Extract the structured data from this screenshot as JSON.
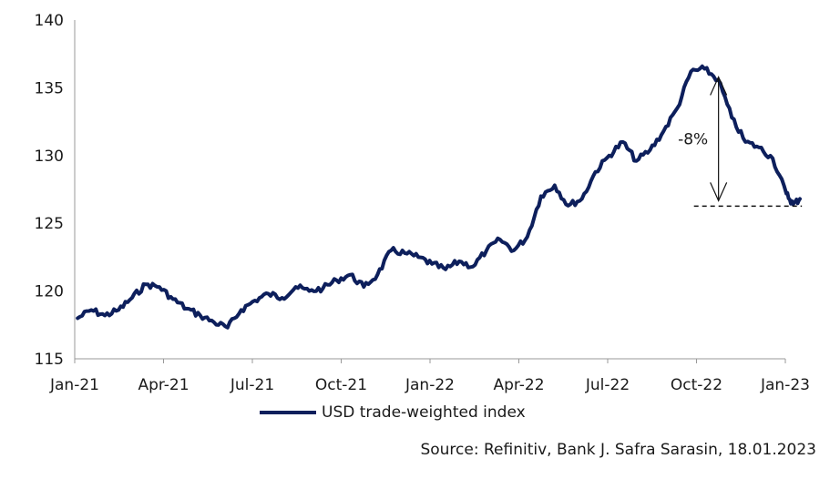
{
  "chart_data": {
    "type": "line",
    "ylim": [
      115,
      140
    ],
    "y_ticks": [
      115,
      120,
      125,
      130,
      135,
      140
    ],
    "x_ticks": [
      "Jan-21",
      "Apr-21",
      "Jul-21",
      "Oct-21",
      "Jan-22",
      "Apr-22",
      "Jul-22",
      "Oct-22",
      "Jan-23"
    ],
    "series": [
      {
        "name": "USD trade-weighted index",
        "color": "#0d1f5c",
        "points": [
          [
            "2021-01-04",
            118.0
          ],
          [
            "2021-01-18",
            118.6
          ],
          [
            "2021-02-01",
            118.2
          ],
          [
            "2021-02-15",
            118.6
          ],
          [
            "2021-03-01",
            119.5
          ],
          [
            "2021-03-15",
            120.5
          ],
          [
            "2021-03-29",
            120.3
          ],
          [
            "2021-04-12",
            119.4
          ],
          [
            "2021-04-26",
            118.7
          ],
          [
            "2021-05-10",
            118.2
          ],
          [
            "2021-05-24",
            117.7
          ],
          [
            "2021-06-07",
            117.3
          ],
          [
            "2021-06-21",
            118.6
          ],
          [
            "2021-07-05",
            119.3
          ],
          [
            "2021-07-19",
            119.8
          ],
          [
            "2021-08-02",
            119.5
          ],
          [
            "2021-08-16",
            120.3
          ],
          [
            "2021-08-30",
            120.0
          ],
          [
            "2021-09-13",
            120.2
          ],
          [
            "2021-09-27",
            120.8
          ],
          [
            "2021-10-11",
            121.2
          ],
          [
            "2021-10-25",
            120.3
          ],
          [
            "2021-11-08",
            121.2
          ],
          [
            "2021-11-22",
            123.0
          ],
          [
            "2021-12-06",
            122.8
          ],
          [
            "2021-12-20",
            122.5
          ],
          [
            "2022-01-03",
            122.0
          ],
          [
            "2022-01-17",
            121.6
          ],
          [
            "2022-01-31",
            122.2
          ],
          [
            "2022-02-14",
            121.8
          ],
          [
            "2022-02-28",
            123.0
          ],
          [
            "2022-03-14",
            123.8
          ],
          [
            "2022-03-28",
            123.0
          ],
          [
            "2022-04-11",
            124.0
          ],
          [
            "2022-04-25",
            127.0
          ],
          [
            "2022-05-09",
            127.8
          ],
          [
            "2022-05-23",
            126.3
          ],
          [
            "2022-06-06",
            126.8
          ],
          [
            "2022-06-20",
            128.8
          ],
          [
            "2022-07-04",
            130.0
          ],
          [
            "2022-07-18",
            131.0
          ],
          [
            "2022-08-01",
            129.6
          ],
          [
            "2022-08-15",
            130.4
          ],
          [
            "2022-08-29",
            131.8
          ],
          [
            "2022-09-12",
            133.5
          ],
          [
            "2022-09-26",
            136.2
          ],
          [
            "2022-10-10",
            136.4
          ],
          [
            "2022-10-24",
            135.6
          ],
          [
            "2022-11-07",
            132.8
          ],
          [
            "2022-11-21",
            131.0
          ],
          [
            "2022-12-05",
            130.6
          ],
          [
            "2022-12-19",
            129.8
          ],
          [
            "2023-01-02",
            127.2
          ],
          [
            "2023-01-09",
            126.4
          ],
          [
            "2023-01-16",
            126.8
          ]
        ]
      }
    ],
    "annotation": {
      "label": "-8%",
      "from_value": 136.2,
      "to_value": 126.4,
      "x_date": "2022-10-15",
      "dashed_line_from": "2022-10-01",
      "dashed_line_to": "2023-01-18"
    },
    "legend": {
      "label": "USD trade-weighted index",
      "placement": "bottom-center"
    },
    "source": "Source: Refinitiv, Bank J. Safra Sarasin, 18.01.2023"
  }
}
